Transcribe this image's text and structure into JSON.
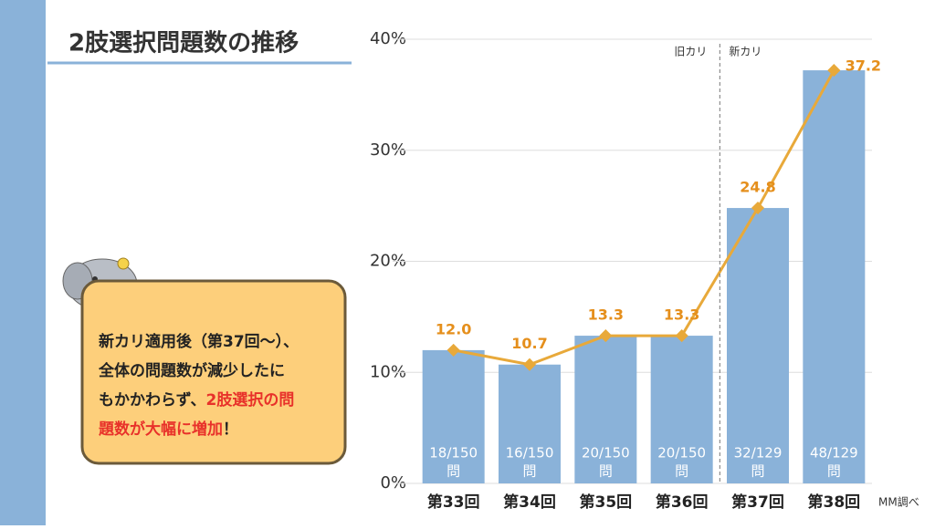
{
  "title": "2肢選択問題数の推移",
  "callout": {
    "lines": [
      [
        "新カリ適用後（第37回〜）、"
      ],
      [
        "全体の問題数が減少したに"
      ],
      [
        "もかかわらず、",
        "2肢選択の問"
      ],
      [
        "題数が大幅に増加",
        "！"
      ]
    ]
  },
  "chart_data": {
    "type": "bar",
    "categories": [
      "第33回",
      "第34回",
      "第35回",
      "第36回",
      "第37回",
      "第38回"
    ],
    "values": [
      12.0,
      10.7,
      13.3,
      13.3,
      24.8,
      37.2
    ],
    "value_labels": [
      "12.0",
      "10.7",
      "13.3",
      "13.3",
      "24.8",
      "37.2"
    ],
    "bar_labels": [
      [
        "18/150",
        "問"
      ],
      [
        "16/150",
        "問"
      ],
      [
        "20/150",
        "問"
      ],
      [
        "20/150",
        "問"
      ],
      [
        "32/129",
        "問"
      ],
      [
        "48/129",
        "問"
      ]
    ],
    "bar_color": "#8ab2d9",
    "line_color": "#e8a93a",
    "ylim": [
      0,
      40
    ],
    "yticks": [
      {
        "value": 0,
        "label": "0%"
      },
      {
        "value": 10,
        "label": "10%"
      },
      {
        "value": 20,
        "label": "20%"
      },
      {
        "value": 30,
        "label": "30%"
      },
      {
        "value": 40,
        "label": "40%"
      }
    ],
    "grid": true,
    "divider": {
      "left_label": "旧カリ",
      "right_label": "新カリ"
    },
    "source": "MM調べ"
  }
}
